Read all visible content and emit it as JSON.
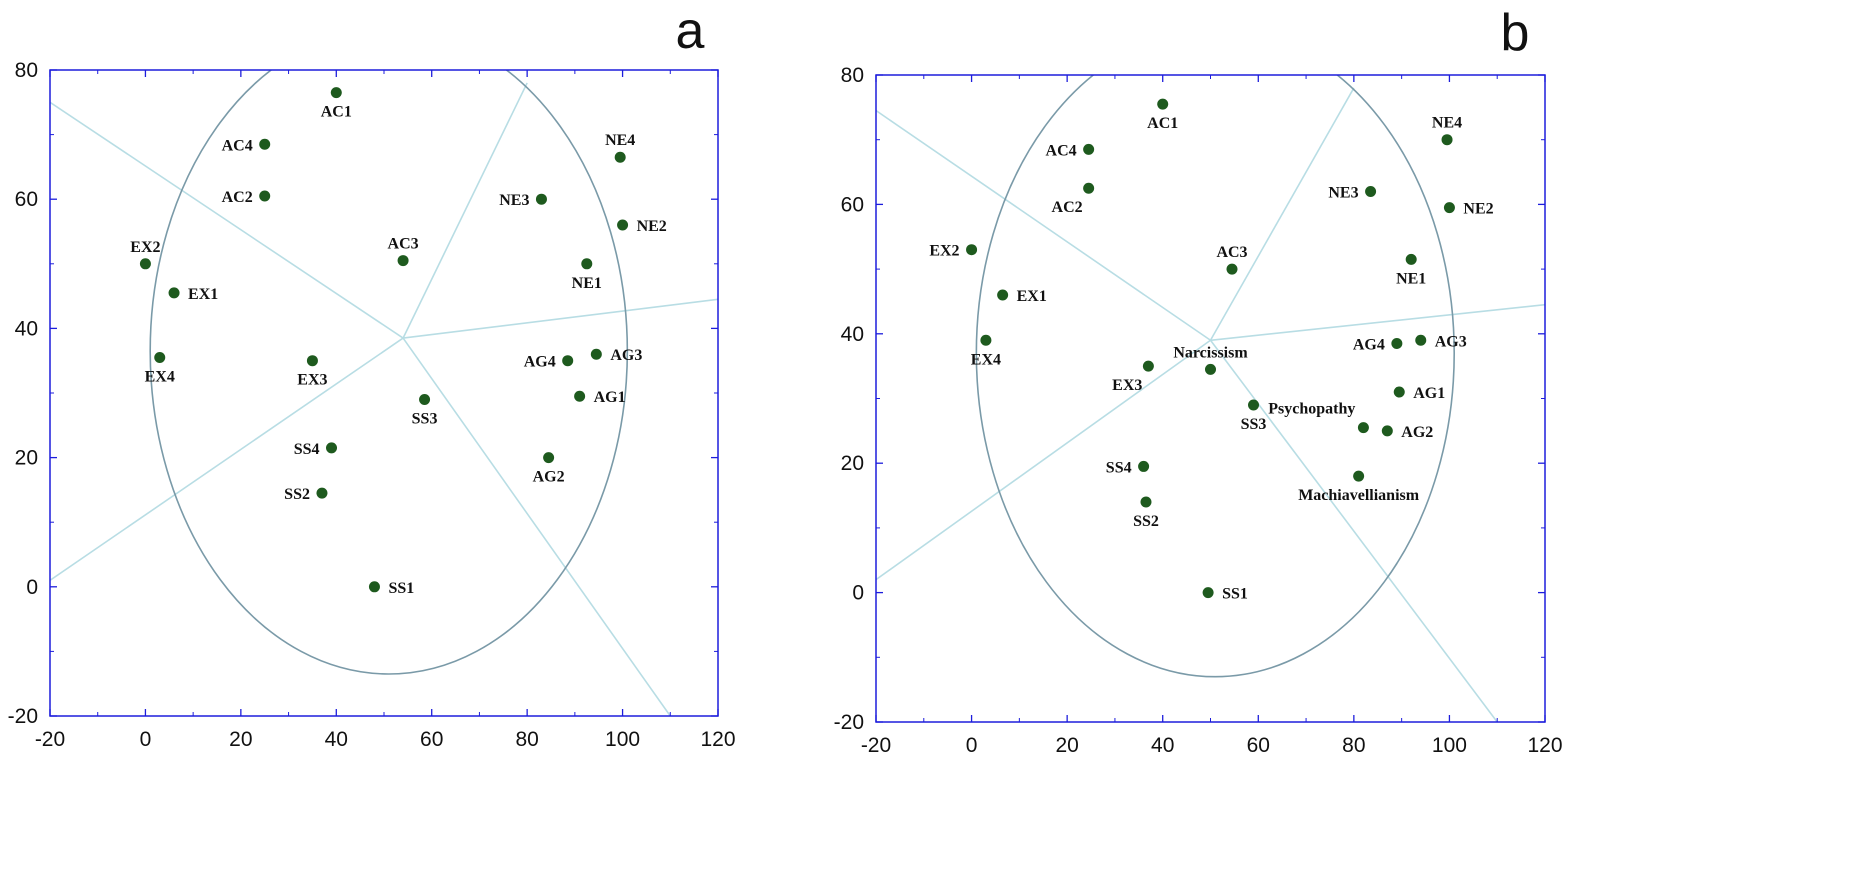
{
  "chart_data": [
    {
      "type": "scatter",
      "panel_label": "a",
      "xlim": [
        -20,
        120
      ],
      "ylim": [
        -20,
        80
      ],
      "xticks": [
        -20,
        0,
        20,
        40,
        60,
        80,
        100,
        120
      ],
      "yticks": [
        -20,
        0,
        20,
        40,
        60,
        80
      ],
      "circle": {
        "cx": 51,
        "cy": 36.5,
        "r": 50
      },
      "center": [
        54,
        38.5
      ],
      "rays": [
        [
          -20,
          75
        ],
        [
          -20,
          1
        ],
        [
          80,
          78
        ],
        [
          120,
          44.5
        ],
        [
          110,
          -20
        ]
      ],
      "points": [
        {
          "label": "AC1",
          "x": 40,
          "y": 76.5,
          "pos": "below"
        },
        {
          "label": "AC4",
          "x": 25,
          "y": 68.5,
          "pos": "left"
        },
        {
          "label": "AC2",
          "x": 25,
          "y": 60.5,
          "pos": "left"
        },
        {
          "label": "AC3",
          "x": 54,
          "y": 50.5,
          "pos": "above"
        },
        {
          "label": "NE4",
          "x": 99.5,
          "y": 66.5,
          "pos": "above"
        },
        {
          "label": "NE3",
          "x": 83,
          "y": 60,
          "pos": "left"
        },
        {
          "label": "NE2",
          "x": 100,
          "y": 56,
          "pos": "right"
        },
        {
          "label": "NE1",
          "x": 92.5,
          "y": 50,
          "pos": "below"
        },
        {
          "label": "EX2",
          "x": 0,
          "y": 50,
          "pos": "above"
        },
        {
          "label": "EX1",
          "x": 6,
          "y": 45.5,
          "pos": "right"
        },
        {
          "label": "EX4",
          "x": 3,
          "y": 35.5,
          "pos": "below"
        },
        {
          "label": "EX3",
          "x": 35,
          "y": 35,
          "pos": "below"
        },
        {
          "label": "AG4",
          "x": 88.5,
          "y": 35,
          "pos": "left"
        },
        {
          "label": "AG3",
          "x": 94.5,
          "y": 36,
          "pos": "right"
        },
        {
          "label": "AG1",
          "x": 91,
          "y": 29.5,
          "pos": "right"
        },
        {
          "label": "AG2",
          "x": 84.5,
          "y": 20,
          "pos": "below"
        },
        {
          "label": "SS3",
          "x": 58.5,
          "y": 29,
          "pos": "below"
        },
        {
          "label": "SS4",
          "x": 39,
          "y": 21.5,
          "pos": "left"
        },
        {
          "label": "SS2",
          "x": 37,
          "y": 14.5,
          "pos": "left"
        },
        {
          "label": "SS1",
          "x": 48,
          "y": 0,
          "pos": "right"
        }
      ]
    },
    {
      "type": "scatter",
      "panel_label": "b",
      "xlim": [
        -20,
        120
      ],
      "ylim": [
        -20,
        80
      ],
      "xticks": [
        -20,
        0,
        20,
        40,
        60,
        80,
        100,
        120
      ],
      "yticks": [
        -20,
        0,
        20,
        40,
        60,
        80
      ],
      "circle": {
        "cx": 51,
        "cy": 37,
        "r": 50
      },
      "center": [
        50,
        39
      ],
      "rays": [
        [
          -20,
          74.5
        ],
        [
          -20,
          2
        ],
        [
          80,
          78
        ],
        [
          120,
          44.5
        ],
        [
          110,
          -20
        ]
      ],
      "points": [
        {
          "label": "AC1",
          "x": 40,
          "y": 75.5,
          "pos": "below"
        },
        {
          "label": "AC4",
          "x": 24.5,
          "y": 68.5,
          "pos": "left"
        },
        {
          "label": "AC2",
          "x": 24.5,
          "y": 62.5,
          "pos": "below-left"
        },
        {
          "label": "AC3",
          "x": 54.5,
          "y": 50,
          "pos": "above"
        },
        {
          "label": "NE4",
          "x": 99.5,
          "y": 70,
          "pos": "above"
        },
        {
          "label": "NE3",
          "x": 83.5,
          "y": 62,
          "pos": "left"
        },
        {
          "label": "NE2",
          "x": 100,
          "y": 59.5,
          "pos": "right"
        },
        {
          "label": "NE1",
          "x": 92,
          "y": 51.5,
          "pos": "below"
        },
        {
          "label": "EX2",
          "x": 0,
          "y": 53,
          "pos": "left"
        },
        {
          "label": "EX1",
          "x": 6.5,
          "y": 46,
          "pos": "right"
        },
        {
          "label": "EX4",
          "x": 3,
          "y": 39,
          "pos": "below"
        },
        {
          "label": "EX3",
          "x": 37,
          "y": 35,
          "pos": "below-left"
        },
        {
          "label": "Narcissism",
          "x": 50,
          "y": 34.5,
          "pos": "above"
        },
        {
          "label": "AG4",
          "x": 89,
          "y": 38.5,
          "pos": "left"
        },
        {
          "label": "AG3",
          "x": 94,
          "y": 39,
          "pos": "right"
        },
        {
          "label": "AG1",
          "x": 89.5,
          "y": 31,
          "pos": "right"
        },
        {
          "label": "Psychopathy",
          "x": 82,
          "y": 25.5,
          "pos": "above-left"
        },
        {
          "label": "AG2",
          "x": 87,
          "y": 25,
          "pos": "right"
        },
        {
          "label": "Machiavellianism",
          "x": 81,
          "y": 18,
          "pos": "below"
        },
        {
          "label": "SS3",
          "x": 59,
          "y": 29,
          "pos": "below"
        },
        {
          "label": "SS4",
          "x": 36,
          "y": 19.5,
          "pos": "left"
        },
        {
          "label": "SS2",
          "x": 36.5,
          "y": 14,
          "pos": "below"
        },
        {
          "label": "SS1",
          "x": 49.5,
          "y": 0,
          "pos": "right"
        }
      ]
    }
  ],
  "colors": {
    "axis": "#1d1ddc",
    "point": "#1e5a1e",
    "circle": "#7a9aa8",
    "ray": "#b8dde4",
    "text": "#111111"
  }
}
